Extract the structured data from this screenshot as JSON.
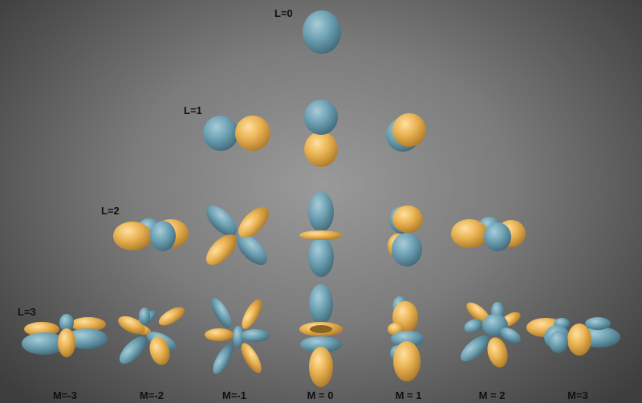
{
  "row_labels": [
    "L=0",
    "L=1",
    "L=2",
    "L=3"
  ],
  "column_labels": [
    "M=-3",
    "M=-2",
    "M=-1",
    "M = 0",
    "M = 1",
    "M = 2",
    "M=3"
  ],
  "colors": {
    "positive_lobe": "#6fa3b5",
    "negative_lobe": "#eab454",
    "background": "#7c7c7c"
  }
}
